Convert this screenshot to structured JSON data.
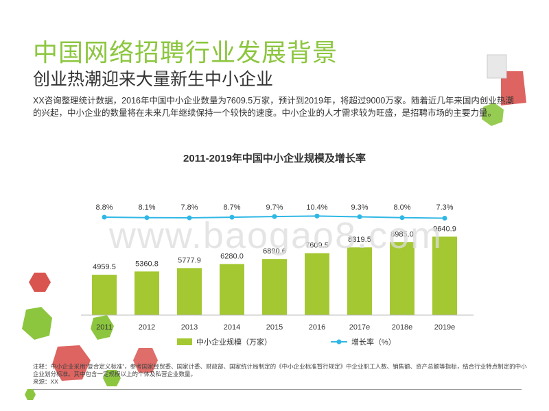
{
  "title": "中国网络招聘行业发展背景",
  "subtitle": "创业热潮迎来大量新生中小企业",
  "intro": "XX咨询整理统计数据，2016年中国中小企业数量为7609.5万家，预计到2019年，将超过9000万家。随着近几年来国内创业热潮的兴起，中小企业的数量将在未来几年继续保持一个较快的速度。中小企业的人才需求较为旺盛，是招聘市场的主要力量。",
  "watermark": "www.baogao8.com",
  "note": {
    "line1": "注释：中小企业采用“复合定义标准”，参考国家经贸委、国家计委、财政部、国家统计局制定的《中小企业标准暂行规定》中企业职工人数、销售额、资产总额等指标，结合行业特点制定的中小企业划分标准。其中包含一定规模以上的个体及私营企业数量。",
    "line2": "来源：XX"
  },
  "colors": {
    "title_green": "#8cc63f",
    "bar": "#a4c832",
    "line": "#2fb7e6",
    "deco_red": "#d9534f",
    "deco_green": "#8cc63f"
  },
  "chart_data": {
    "type": "bar+line",
    "title": "2011-2019年中国中小企业规模及增长率",
    "categories": [
      "2011",
      "2012",
      "2013",
      "2014",
      "2015",
      "2016",
      "2017e",
      "2018e",
      "2019e"
    ],
    "series": [
      {
        "name": "中小企业规模（万家）",
        "type": "bar",
        "values": [
          4959.5,
          5360.8,
          5777.9,
          6280.0,
          6890.6,
          7609.5,
          8319.5,
          8985.0,
          9640.9
        ],
        "labels": [
          "4959.5",
          "5360.8",
          "5777.9",
          "6280.0",
          "6890.6",
          "7609.5",
          "8319.5",
          "8985.0",
          "9640.9"
        ]
      },
      {
        "name": "增长率（%）",
        "type": "line",
        "values": [
          8.8,
          8.1,
          7.8,
          8.7,
          9.7,
          10.4,
          9.3,
          8.0,
          7.3
        ],
        "labels": [
          "8.8%",
          "8.1%",
          "7.8%",
          "8.7%",
          "9.7%",
          "10.4%",
          "9.3%",
          "8.0%",
          "7.3%"
        ]
      }
    ],
    "legend_position": "bottom",
    "grid": false
  }
}
